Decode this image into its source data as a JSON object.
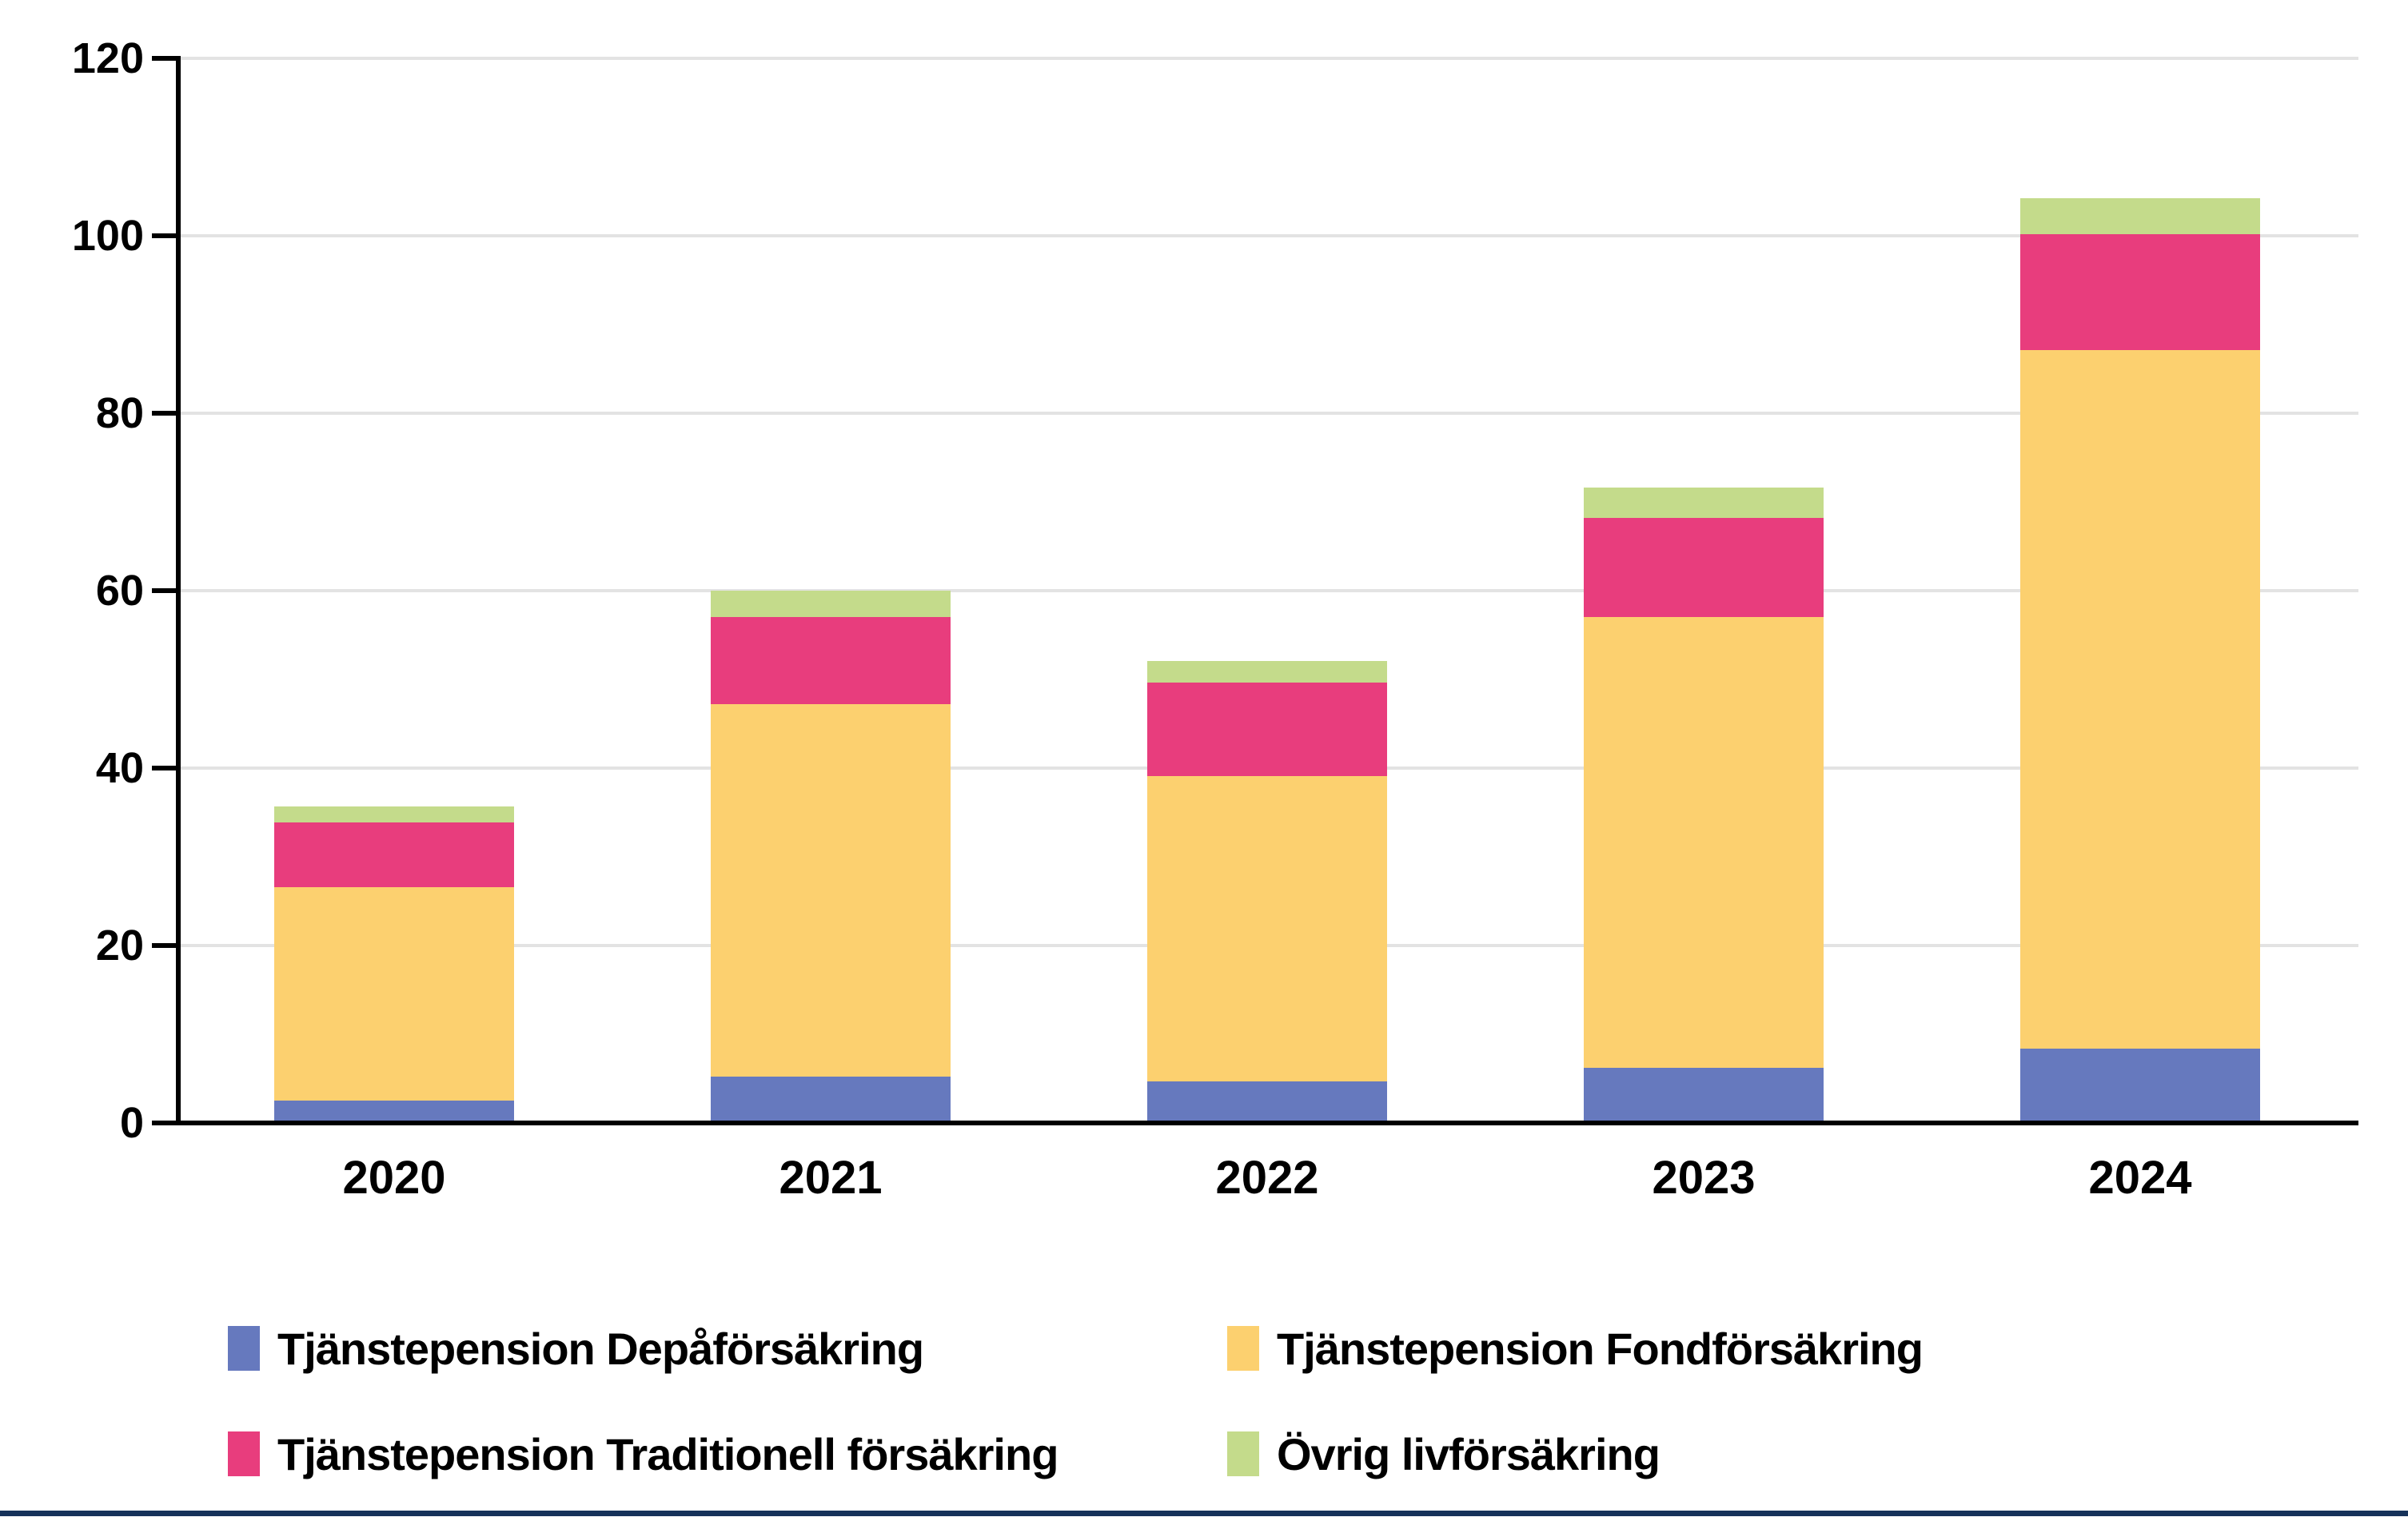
{
  "chart_data": {
    "type": "bar",
    "stacked": true,
    "title": "",
    "xlabel": "",
    "ylabel": "",
    "categories": [
      "2020",
      "2021",
      "2022",
      "2023",
      "2024"
    ],
    "series": [
      {
        "name": "Tjänstepension Depåförsäkring",
        "color": "#6679be",
        "values": [
          2.5,
          5.2,
          4.7,
          6.2,
          8.4
        ]
      },
      {
        "name": "Tjänstepension Fondförsäkring",
        "color": "#fcd06f",
        "values": [
          24.1,
          42.0,
          34.4,
          50.8,
          78.7
        ]
      },
      {
        "name": "Tjänstepension Traditionell försäkring",
        "color": "#e83d7d",
        "values": [
          7.3,
          9.8,
          10.5,
          11.2,
          13.1
        ]
      },
      {
        "name": "Övrig livförsäkring",
        "color": "#c4db8b",
        "values": [
          1.8,
          3.0,
          2.5,
          3.4,
          4.0
        ]
      }
    ],
    "totals": [
      35.7,
      60.0,
      52.1,
      71.6,
      104.2
    ],
    "ylim": [
      0,
      120
    ],
    "yticks": [
      0,
      20,
      40,
      60,
      80,
      100,
      120
    ],
    "grid": true,
    "legend_position": "bottom",
    "legend_rows": [
      [
        0,
        1
      ],
      [
        2,
        3
      ]
    ]
  },
  "colors": {
    "axis": "#000000",
    "gridline": "#e3e3e3",
    "text": "#000000",
    "bottom_rule": "#16325a",
    "background": "#ffffff"
  }
}
